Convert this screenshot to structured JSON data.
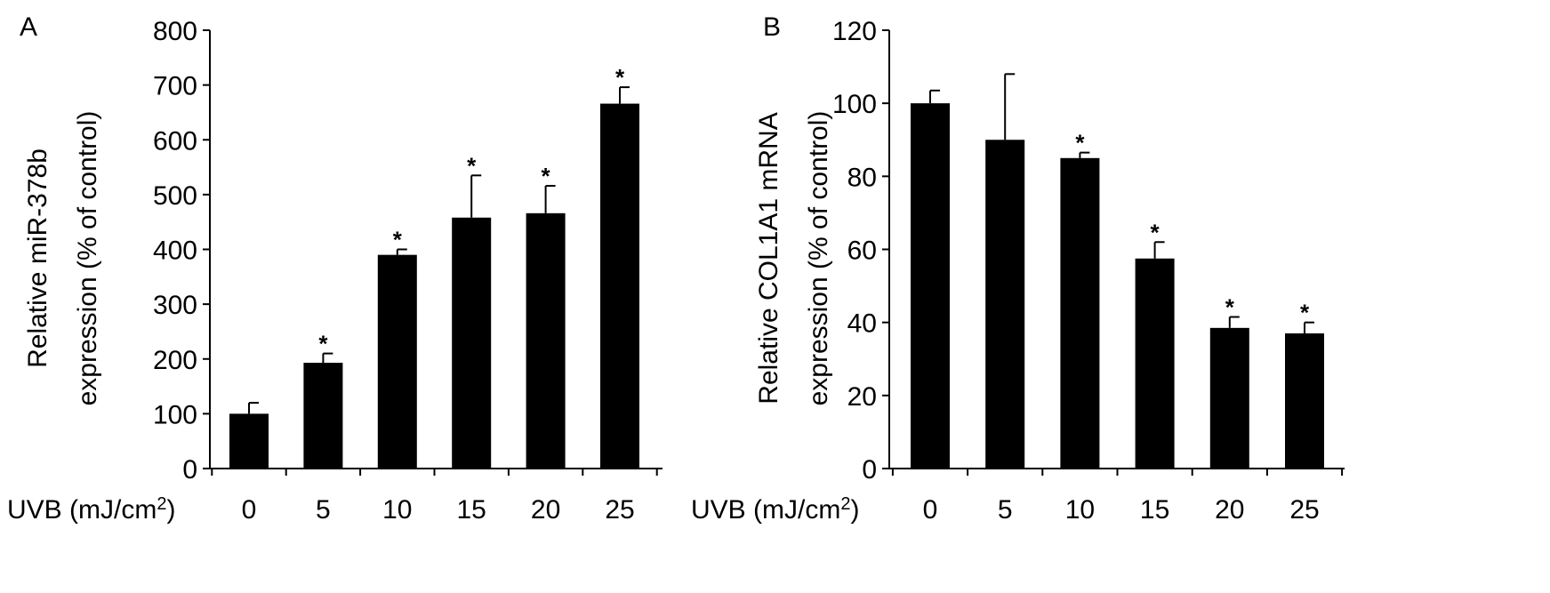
{
  "chart_data": [
    {
      "type": "bar",
      "panel_label": "A",
      "title": "",
      "xlabel": "UVB (mJ/cm",
      "xlabel_sup": "2",
      "xlabel_end": ")",
      "ylabel_line1": "Relative miR-378b",
      "ylabel_line2": "expression (% of control)",
      "categories": [
        "0",
        "5",
        "10",
        "15",
        "20",
        "25"
      ],
      "values": [
        100,
        193,
        390,
        458,
        466,
        666
      ],
      "errors": [
        20,
        17,
        10,
        77,
        50,
        30
      ],
      "significant": [
        false,
        true,
        true,
        true,
        true,
        true
      ],
      "significance_marker": "*",
      "ylim": [
        0,
        800
      ],
      "yticks": [
        "0",
        "100",
        "200",
        "300",
        "400",
        "500",
        "600",
        "700",
        "800"
      ],
      "grid": false
    },
    {
      "type": "bar",
      "panel_label": "B",
      "title": "",
      "xlabel": "UVB (mJ/cm",
      "xlabel_sup": "2",
      "xlabel_end": ")",
      "ylabel_line1": "Relative COL1A1 mRNA",
      "ylabel_line2": "expression (% of control)",
      "categories": [
        "0",
        "5",
        "10",
        "15",
        "20",
        "25"
      ],
      "values": [
        100,
        90,
        85,
        57.5,
        38.5,
        37
      ],
      "errors": [
        3.5,
        18,
        1.5,
        4.5,
        3,
        3
      ],
      "significant": [
        false,
        false,
        true,
        true,
        true,
        true
      ],
      "significance_marker": "*",
      "ylim": [
        0,
        120
      ],
      "yticks": [
        "0",
        "20",
        "40",
        "60",
        "80",
        "100",
        "120"
      ],
      "grid": false
    }
  ]
}
